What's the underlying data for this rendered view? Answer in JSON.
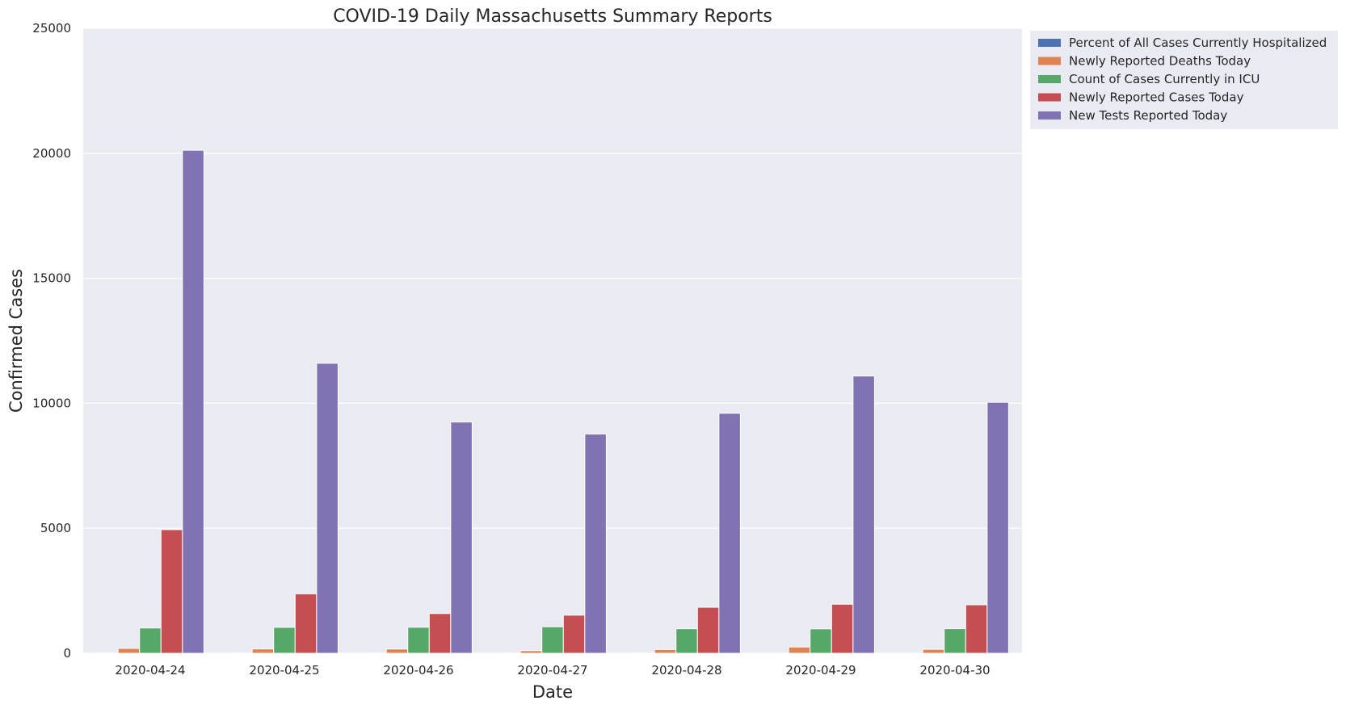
{
  "chart_data": {
    "type": "bar",
    "title": "COVID-19 Daily Massachusetts Summary Reports",
    "xlabel": "Date",
    "ylabel": "Confirmed Cases",
    "ylim": [
      0,
      25000
    ],
    "yticks": [
      0,
      5000,
      10000,
      15000,
      20000,
      25000
    ],
    "grid": true,
    "legend_position": "upper right, outside plot area",
    "categories": [
      "2020-04-24",
      "2020-04-25",
      "2020-04-26",
      "2020-04-27",
      "2020-04-28",
      "2020-04-29",
      "2020-04-30"
    ],
    "series": [
      {
        "name": "Percent of All Cases Currently Hospitalized",
        "color": "#4c72b0",
        "values": [
          5,
          5,
          5,
          5,
          5,
          4,
          4
        ]
      },
      {
        "name": "Newly Reported Deaths Today",
        "color": "#dd8452",
        "values": [
          196,
          174,
          169,
          104,
          150,
          252,
          157
        ]
      },
      {
        "name": "Count of Cases Currently in ICU",
        "color": "#55a868",
        "values": [
          1012,
          1038,
          1041,
          1062,
          981,
          976,
          983
        ]
      },
      {
        "name": "Newly Reported Cases Today",
        "color": "#c44e52",
        "values": [
          4946,
          2379,
          1590,
          1524,
          1840,
          1963,
          1940
        ]
      },
      {
        "name": "New Tests Reported Today",
        "color": "#8172b3",
        "values": [
          20120,
          11600,
          9250,
          8770,
          9600,
          11090,
          10040
        ]
      }
    ]
  }
}
